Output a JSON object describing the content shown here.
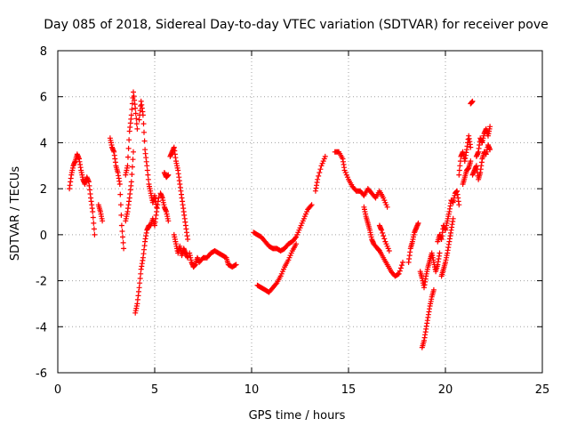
{
  "chart_data": {
    "type": "scatter",
    "title": "Day 085 of 2018, Sidereal Day-to-day VTEC variation (SDTVAR) for receiver pove",
    "xlabel": "GPS time / hours",
    "ylabel": "SDTVAR / TECUs",
    "xlim": [
      0,
      25
    ],
    "ylim": [
      -6,
      8
    ],
    "xticks": [
      0,
      5,
      10,
      15,
      20,
      25
    ],
    "xtick_labels": [
      "0",
      "5",
      "10",
      "15",
      "20",
      "25"
    ],
    "yticks": [
      -6,
      -4,
      -2,
      0,
      2,
      4,
      6,
      8
    ],
    "ytick_labels": [
      "-6",
      "-4",
      "-2",
      "0",
      "2",
      "4",
      "6",
      "8"
    ],
    "grid": true,
    "marker": "plus",
    "marker_color": "#ff0000",
    "series": [
      {
        "name": "SDTVAR",
        "color": "#ff0000",
        "segments": [
          [
            [
              0.6,
              2.0
            ],
            [
              0.7,
              2.6
            ],
            [
              0.8,
              3.0
            ],
            [
              0.9,
              3.2
            ],
            [
              1.0,
              3.5
            ],
            [
              1.1,
              3.3
            ],
            [
              1.2,
              2.8
            ],
            [
              1.3,
              2.4
            ],
            [
              1.4,
              2.2
            ],
            [
              1.5,
              2.5
            ],
            [
              1.6,
              2.3
            ],
            [
              1.7,
              1.6
            ],
            [
              1.8,
              1.0
            ],
            [
              1.9,
              0.0
            ]
          ],
          [
            [
              2.1,
              1.3
            ],
            [
              2.2,
              1.0
            ],
            [
              2.3,
              0.6
            ]
          ],
          [
            [
              2.7,
              4.2
            ],
            [
              2.8,
              3.8
            ],
            [
              2.9,
              3.6
            ],
            [
              3.0,
              3.0
            ],
            [
              3.1,
              2.7
            ],
            [
              3.2,
              2.2
            ],
            [
              3.3,
              0.4
            ],
            [
              3.4,
              -0.6
            ]
          ],
          [
            [
              3.5,
              2.6
            ],
            [
              3.6,
              3.0
            ],
            [
              3.7,
              4.5
            ],
            [
              3.8,
              5.2
            ],
            [
              3.9,
              6.2
            ],
            [
              4.0,
              5.5
            ],
            [
              4.1,
              4.6
            ]
          ],
          [
            [
              3.5,
              0.6
            ],
            [
              3.6,
              1.0
            ],
            [
              3.7,
              1.6
            ],
            [
              3.8,
              2.3
            ],
            [
              3.9,
              3.6
            ]
          ],
          [
            [
              4.0,
              -3.4
            ],
            [
              4.1,
              -3.0
            ],
            [
              4.2,
              -2.3
            ],
            [
              4.3,
              -1.5
            ],
            [
              4.4,
              -1.0
            ],
            [
              4.5,
              -0.3
            ],
            [
              4.6,
              0.2
            ],
            [
              4.7,
              0.4
            ],
            [
              4.8,
              0.4
            ],
            [
              4.9,
              0.7
            ],
            [
              5.0,
              0.4
            ],
            [
              5.1,
              1.0
            ],
            [
              5.2,
              1.6
            ]
          ],
          [
            [
              4.2,
              5.0
            ],
            [
              4.3,
              5.8
            ],
            [
              4.4,
              5.2
            ],
            [
              4.5,
              3.7
            ],
            [
              4.6,
              3.0
            ],
            [
              4.7,
              2.2
            ],
            [
              4.8,
              1.8
            ],
            [
              4.9,
              1.4
            ],
            [
              5.0,
              1.7
            ],
            [
              5.1,
              1.2
            ]
          ],
          [
            [
              5.3,
              1.8
            ],
            [
              5.4,
              1.6
            ],
            [
              5.5,
              1.2
            ],
            [
              5.6,
              1.0
            ],
            [
              5.7,
              0.6
            ]
          ],
          [
            [
              5.5,
              2.7
            ],
            [
              5.6,
              2.5
            ],
            [
              5.7,
              2.6
            ]
          ],
          [
            [
              5.8,
              3.4
            ],
            [
              5.9,
              3.6
            ],
            [
              6.0,
              3.8
            ],
            [
              6.1,
              3.2
            ],
            [
              6.2,
              2.8
            ],
            [
              6.3,
              2.2
            ],
            [
              6.4,
              1.6
            ],
            [
              6.5,
              1.0
            ],
            [
              6.6,
              0.4
            ],
            [
              6.7,
              -0.2
            ]
          ],
          [
            [
              6.0,
              0.0
            ],
            [
              6.1,
              -0.4
            ],
            [
              6.2,
              -0.8
            ],
            [
              6.3,
              -0.5
            ],
            [
              6.4,
              -0.9
            ],
            [
              6.5,
              -0.6
            ],
            [
              6.6,
              -0.8
            ],
            [
              6.7,
              -1.0
            ]
          ],
          [
            [
              6.8,
              -0.8
            ],
            [
              6.9,
              -1.2
            ],
            [
              7.0,
              -1.4
            ],
            [
              7.1,
              -1.3
            ],
            [
              7.2,
              -1.0
            ],
            [
              7.3,
              -1.2
            ],
            [
              7.5,
              -1.0
            ],
            [
              7.7,
              -1.0
            ],
            [
              7.9,
              -0.8
            ],
            [
              8.1,
              -0.7
            ],
            [
              8.3,
              -0.8
            ],
            [
              8.5,
              -0.9
            ],
            [
              8.7,
              -1.0
            ],
            [
              8.8,
              -1.3
            ],
            [
              9.0,
              -1.4
            ],
            [
              9.2,
              -1.3
            ]
          ],
          [
            [
              10.1,
              0.1
            ],
            [
              10.3,
              0.0
            ],
            [
              10.5,
              -0.1
            ],
            [
              10.7,
              -0.3
            ],
            [
              10.9,
              -0.5
            ],
            [
              11.1,
              -0.6
            ],
            [
              11.3,
              -0.6
            ],
            [
              11.5,
              -0.7
            ],
            [
              11.7,
              -0.6
            ],
            [
              11.9,
              -0.4
            ],
            [
              12.1,
              -0.3
            ],
            [
              12.3,
              -0.1
            ],
            [
              12.5,
              0.3
            ],
            [
              12.7,
              0.7
            ],
            [
              12.9,
              1.1
            ],
            [
              13.1,
              1.3
            ]
          ],
          [
            [
              10.3,
              -2.2
            ],
            [
              10.5,
              -2.3
            ],
            [
              10.7,
              -2.4
            ],
            [
              10.9,
              -2.5
            ],
            [
              11.1,
              -2.3
            ],
            [
              11.3,
              -2.1
            ],
            [
              11.5,
              -1.8
            ],
            [
              11.7,
              -1.4
            ],
            [
              11.9,
              -1.1
            ],
            [
              12.1,
              -0.7
            ],
            [
              12.3,
              -0.4
            ]
          ],
          [
            [
              13.3,
              1.9
            ],
            [
              13.4,
              2.4
            ],
            [
              13.6,
              3.0
            ],
            [
              13.8,
              3.4
            ]
          ],
          [
            [
              14.3,
              3.6
            ],
            [
              14.5,
              3.6
            ],
            [
              14.7,
              3.3
            ],
            [
              14.8,
              2.8
            ],
            [
              15.0,
              2.4
            ],
            [
              15.2,
              2.1
            ],
            [
              15.4,
              1.9
            ],
            [
              15.6,
              1.9
            ],
            [
              15.8,
              1.7
            ],
            [
              16.0,
              2.0
            ],
            [
              16.2,
              1.8
            ],
            [
              16.4,
              1.6
            ],
            [
              16.6,
              1.9
            ],
            [
              16.8,
              1.6
            ],
            [
              17.0,
              1.2
            ]
          ],
          [
            [
              15.8,
              1.2
            ],
            [
              15.9,
              0.8
            ],
            [
              16.0,
              0.5
            ],
            [
              16.1,
              0.2
            ],
            [
              16.2,
              -0.2
            ],
            [
              16.3,
              -0.4
            ],
            [
              16.5,
              -0.6
            ],
            [
              16.6,
              -0.7
            ],
            [
              16.8,
              -1.0
            ],
            [
              17.0,
              -1.3
            ],
            [
              17.2,
              -1.6
            ],
            [
              17.4,
              -1.8
            ],
            [
              17.6,
              -1.7
            ],
            [
              17.8,
              -1.2
            ]
          ],
          [
            [
              16.6,
              0.4
            ],
            [
              16.7,
              0.2
            ],
            [
              16.9,
              -0.3
            ],
            [
              17.1,
              -0.7
            ]
          ],
          [
            [
              18.1,
              -1.2
            ],
            [
              18.2,
              -0.6
            ],
            [
              18.3,
              -0.3
            ],
            [
              18.4,
              0.1
            ],
            [
              18.5,
              0.3
            ],
            [
              18.6,
              0.5
            ]
          ],
          [
            [
              18.7,
              -1.6
            ],
            [
              18.8,
              -1.9
            ],
            [
              18.9,
              -2.3
            ],
            [
              19.0,
              -1.8
            ],
            [
              19.1,
              -1.4
            ],
            [
              19.2,
              -1.1
            ],
            [
              19.3,
              -0.8
            ],
            [
              19.4,
              -1.2
            ],
            [
              19.5,
              -1.6
            ],
            [
              19.6,
              -1.3
            ],
            [
              19.7,
              -0.8
            ]
          ],
          [
            [
              18.8,
              -4.9
            ],
            [
              18.9,
              -4.6
            ],
            [
              19.0,
              -4.1
            ],
            [
              19.1,
              -3.6
            ],
            [
              19.2,
              -3.1
            ],
            [
              19.3,
              -2.7
            ],
            [
              19.4,
              -2.4
            ]
          ],
          [
            [
              19.6,
              -0.3
            ],
            [
              19.7,
              0.0
            ],
            [
              19.8,
              -0.2
            ],
            [
              19.9,
              0.4
            ],
            [
              20.0,
              0.2
            ],
            [
              20.1,
              0.6
            ],
            [
              20.2,
              1.0
            ],
            [
              20.3,
              1.5
            ],
            [
              20.4,
              1.4
            ],
            [
              20.5,
              1.8
            ],
            [
              20.6,
              1.9
            ],
            [
              20.7,
              1.3
            ]
          ],
          [
            [
              19.8,
              -1.8
            ],
            [
              19.9,
              -1.5
            ],
            [
              20.0,
              -1.2
            ],
            [
              20.1,
              -0.8
            ],
            [
              20.2,
              -0.3
            ],
            [
              20.3,
              0.2
            ],
            [
              20.4,
              0.7
            ]
          ],
          [
            [
              20.7,
              2.6
            ],
            [
              20.8,
              3.4
            ],
            [
              20.9,
              3.6
            ],
            [
              21.0,
              3.2
            ],
            [
              21.1,
              3.7
            ],
            [
              21.2,
              4.3
            ],
            [
              21.3,
              3.8
            ]
          ],
          [
            [
              20.9,
              2.2
            ],
            [
              21.0,
              2.5
            ],
            [
              21.1,
              2.8
            ],
            [
              21.2,
              2.9
            ],
            [
              21.3,
              3.2
            ]
          ],
          [
            [
              21.3,
              5.7
            ],
            [
              21.4,
              5.8
            ]
          ],
          [
            [
              21.4,
              2.6
            ],
            [
              21.5,
              2.8
            ],
            [
              21.6,
              3.0
            ],
            [
              21.7,
              2.4
            ],
            [
              21.8,
              2.7
            ],
            [
              21.9,
              3.3
            ],
            [
              22.0,
              3.6
            ],
            [
              22.1,
              3.5
            ],
            [
              22.2,
              3.9
            ],
            [
              22.3,
              3.7
            ]
          ],
          [
            [
              21.6,
              3.4
            ],
            [
              21.7,
              3.6
            ],
            [
              21.8,
              4.2
            ],
            [
              21.9,
              4.0
            ],
            [
              22.0,
              4.4
            ],
            [
              22.1,
              4.6
            ],
            [
              22.2,
              4.3
            ],
            [
              22.3,
              4.7
            ]
          ]
        ]
      }
    ]
  }
}
